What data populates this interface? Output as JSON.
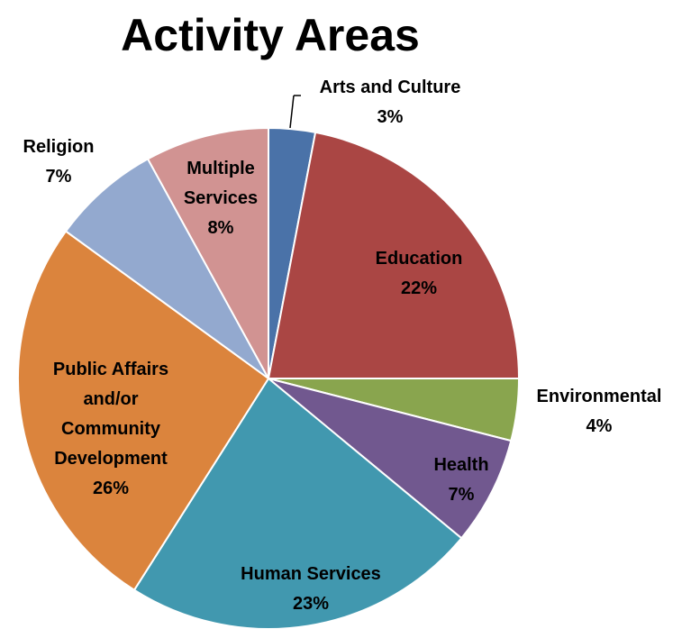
{
  "chart_data": {
    "type": "pie",
    "title": "Activity Areas",
    "categories": [
      "Arts and Culture",
      "Education",
      "Environmental",
      "Health",
      "Human Services",
      "Public Affairs and/or Community Development",
      "Religion",
      "Multiple Services"
    ],
    "values": [
      3,
      22,
      4,
      7,
      23,
      26,
      7,
      8
    ],
    "value_labels": [
      "3%",
      "22%",
      "4%",
      "7%",
      "23%",
      "26%",
      "7%",
      "8%"
    ],
    "colors": [
      "#4a72a8",
      "#aa4644",
      "#89a54e",
      "#71588f",
      "#4198af",
      "#db843d",
      "#93a9cf",
      "#d19392"
    ]
  }
}
